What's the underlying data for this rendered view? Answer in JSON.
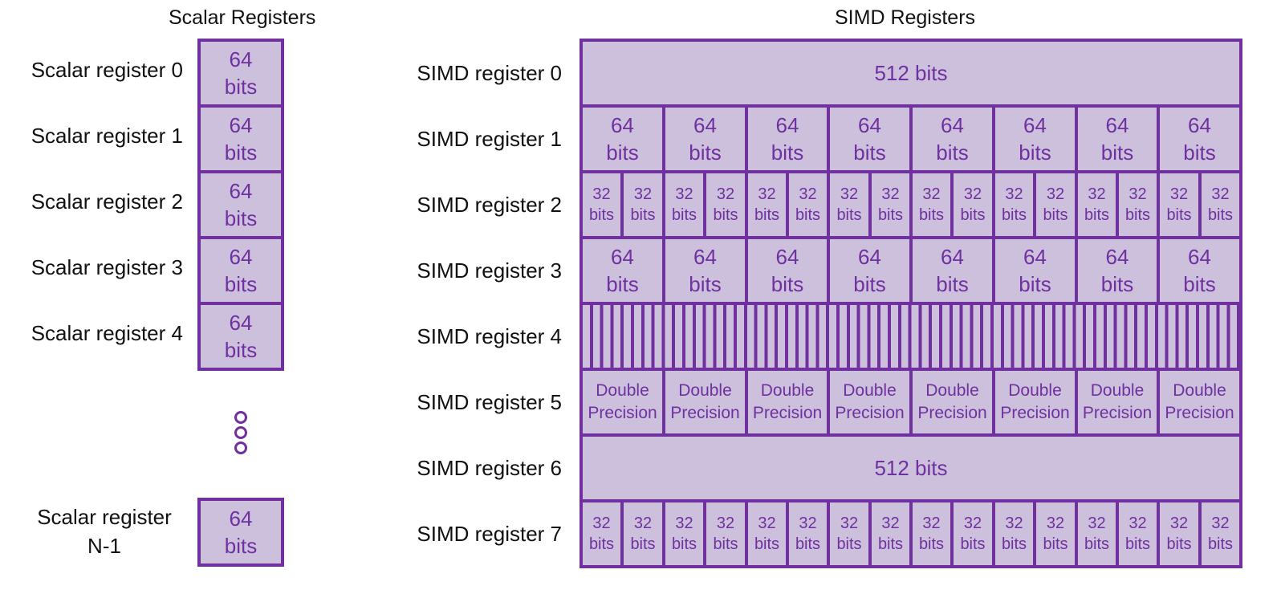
{
  "headings": {
    "scalar": "Scalar Registers",
    "simd": "SIMD Registers"
  },
  "colors": {
    "fill": "#ccc0dc",
    "stroke": "#7030a0",
    "text": "#7030a0"
  },
  "scalar_registers": [
    {
      "label": "Scalar register 0",
      "lines": [
        "64",
        "bits"
      ]
    },
    {
      "label": "Scalar register 1",
      "lines": [
        "64",
        "bits"
      ]
    },
    {
      "label": "Scalar register 2",
      "lines": [
        "64",
        "bits"
      ]
    },
    {
      "label": "Scalar register 3",
      "lines": [
        "64",
        "bits"
      ]
    },
    {
      "label": "Scalar register 4",
      "lines": [
        "64",
        "bits"
      ]
    }
  ],
  "scalar_last": {
    "label_lines": [
      "Scalar register",
      "N-1"
    ],
    "lines": [
      "64",
      "bits"
    ]
  },
  "ellipsis_icon": "vertical-ellipsis",
  "simd_registers": [
    {
      "label": "SIMD register 0",
      "layout": "whole",
      "text": "512 bits"
    },
    {
      "label": "SIMD register 1",
      "layout": "split",
      "count": 8,
      "lines": [
        "64",
        "bits"
      ]
    },
    {
      "label": "SIMD register 2",
      "layout": "split",
      "count": 16,
      "lines": [
        "32",
        "bits"
      ]
    },
    {
      "label": "SIMD register 3",
      "layout": "split",
      "count": 8,
      "lines": [
        "64",
        "bits"
      ]
    },
    {
      "label": "SIMD register 4",
      "layout": "hatched"
    },
    {
      "label": "SIMD register 5",
      "layout": "split",
      "count": 8,
      "lines": [
        "Double",
        "Precision"
      ]
    },
    {
      "label": "SIMD register 6",
      "layout": "whole",
      "text": "512 bits"
    },
    {
      "label": "SIMD register 7",
      "layout": "split",
      "count": 16,
      "lines": [
        "32",
        "bits"
      ]
    }
  ]
}
